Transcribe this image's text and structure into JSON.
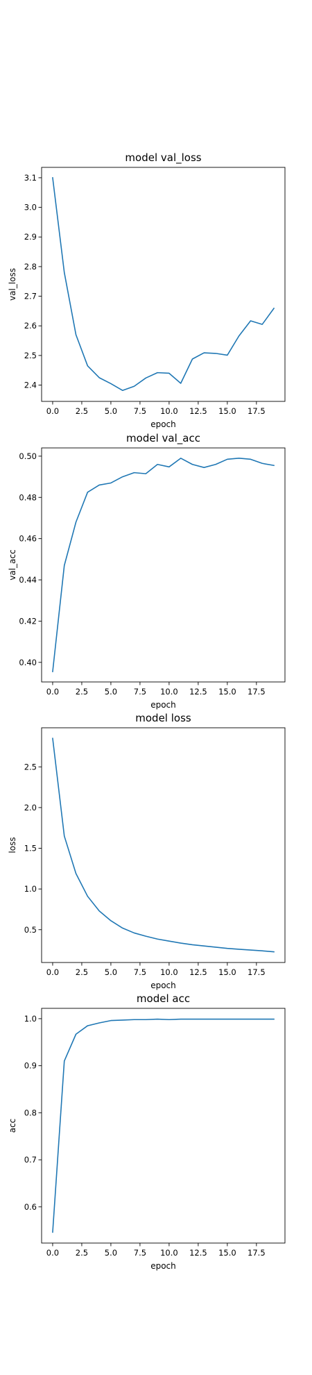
{
  "chart_data": [
    {
      "type": "line",
      "title": "model val_loss",
      "xlabel": "epoch",
      "ylabel": "val_loss",
      "x": [
        0,
        1,
        2,
        3,
        4,
        5,
        6,
        7,
        8,
        9,
        10,
        11,
        12,
        13,
        14,
        15,
        16,
        17,
        18,
        19
      ],
      "values": [
        3.1,
        2.78,
        2.57,
        2.465,
        2.425,
        2.405,
        2.382,
        2.396,
        2.424,
        2.442,
        2.44,
        2.406,
        2.488,
        2.509,
        2.507,
        2.501,
        2.566,
        2.617,
        2.605,
        2.659
      ],
      "xlim": [
        -0.95,
        19.95
      ],
      "ylim": [
        2.345,
        3.135
      ],
      "xticks": [
        0.0,
        2.5,
        5.0,
        7.5,
        10.0,
        12.5,
        15.0,
        17.5
      ],
      "xtick_labels": [
        "0.0",
        "2.5",
        "5.0",
        "7.5",
        "10.0",
        "12.5",
        "15.0",
        "17.5"
      ],
      "yticks": [
        2.4,
        2.5,
        2.6,
        2.7,
        2.8,
        2.9,
        3.0,
        3.1
      ],
      "ytick_labels": [
        "2.4",
        "2.5",
        "2.6",
        "2.7",
        "2.8",
        "2.9",
        "3.0",
        "3.1"
      ],
      "grid": false,
      "color": "#1f77b4"
    },
    {
      "type": "line",
      "title": "model val_acc",
      "xlabel": "epoch",
      "ylabel": "val_acc",
      "x": [
        0,
        1,
        2,
        3,
        4,
        5,
        6,
        7,
        8,
        9,
        10,
        11,
        12,
        13,
        14,
        15,
        16,
        17,
        18,
        19
      ],
      "values": [
        0.3955,
        0.447,
        0.468,
        0.4825,
        0.486,
        0.487,
        0.49,
        0.492,
        0.4915,
        0.496,
        0.4948,
        0.499,
        0.496,
        0.4945,
        0.496,
        0.4985,
        0.499,
        0.4985,
        0.4965,
        0.4955
      ],
      "xlim": [
        -0.95,
        19.95
      ],
      "ylim": [
        0.3905,
        0.504
      ],
      "xticks": [
        0.0,
        2.5,
        5.0,
        7.5,
        10.0,
        12.5,
        15.0,
        17.5
      ],
      "xtick_labels": [
        "0.0",
        "2.5",
        "5.0",
        "7.5",
        "10.0",
        "12.5",
        "15.0",
        "17.5"
      ],
      "yticks": [
        0.4,
        0.42,
        0.44,
        0.46,
        0.48,
        0.5
      ],
      "ytick_labels": [
        "0.40",
        "0.42",
        "0.44",
        "0.46",
        "0.48",
        "0.50"
      ],
      "grid": false,
      "color": "#1f77b4"
    },
    {
      "type": "line",
      "title": "model loss",
      "xlabel": "epoch",
      "ylabel": "loss",
      "x": [
        0,
        1,
        2,
        3,
        4,
        5,
        6,
        7,
        8,
        9,
        10,
        11,
        12,
        13,
        14,
        15,
        16,
        17,
        18,
        19
      ],
      "values": [
        2.85,
        1.65,
        1.19,
        0.91,
        0.73,
        0.61,
        0.52,
        0.46,
        0.42,
        0.385,
        0.36,
        0.335,
        0.315,
        0.3,
        0.285,
        0.27,
        0.26,
        0.25,
        0.24,
        0.228
      ],
      "xlim": [
        -0.95,
        19.95
      ],
      "ylim": [
        0.097,
        2.98
      ],
      "xticks": [
        0.0,
        2.5,
        5.0,
        7.5,
        10.0,
        12.5,
        15.0,
        17.5
      ],
      "xtick_labels": [
        "0.0",
        "2.5",
        "5.0",
        "7.5",
        "10.0",
        "12.5",
        "15.0",
        "17.5"
      ],
      "yticks": [
        0.5,
        1.0,
        1.5,
        2.0,
        2.5
      ],
      "ytick_labels": [
        "0.5",
        "1.0",
        "1.5",
        "2.0",
        "2.5"
      ],
      "grid": false,
      "color": "#1f77b4"
    },
    {
      "type": "line",
      "title": "model acc",
      "xlabel": "epoch",
      "ylabel": "acc",
      "x": [
        0,
        1,
        2,
        3,
        4,
        5,
        6,
        7,
        8,
        9,
        10,
        11,
        12,
        13,
        14,
        15,
        16,
        17,
        18,
        19
      ],
      "values": [
        0.546,
        0.91,
        0.967,
        0.985,
        0.991,
        0.996,
        0.997,
        0.998,
        0.998,
        0.999,
        0.998,
        0.999,
        0.999,
        0.999,
        0.999,
        0.999,
        0.999,
        0.999,
        0.999,
        0.999
      ],
      "xlim": [
        -0.95,
        19.95
      ],
      "ylim": [
        0.523,
        1.022
      ],
      "xticks": [
        0.0,
        2.5,
        5.0,
        7.5,
        10.0,
        12.5,
        15.0,
        17.5
      ],
      "xtick_labels": [
        "0.0",
        "2.5",
        "5.0",
        "7.5",
        "10.0",
        "12.5",
        "15.0",
        "17.5"
      ],
      "yticks": [
        0.6,
        0.7,
        0.8,
        0.9,
        1.0
      ],
      "ytick_labels": [
        "0.6",
        "0.7",
        "0.8",
        "0.9",
        "1.0"
      ],
      "grid": false,
      "color": "#1f77b4"
    }
  ]
}
